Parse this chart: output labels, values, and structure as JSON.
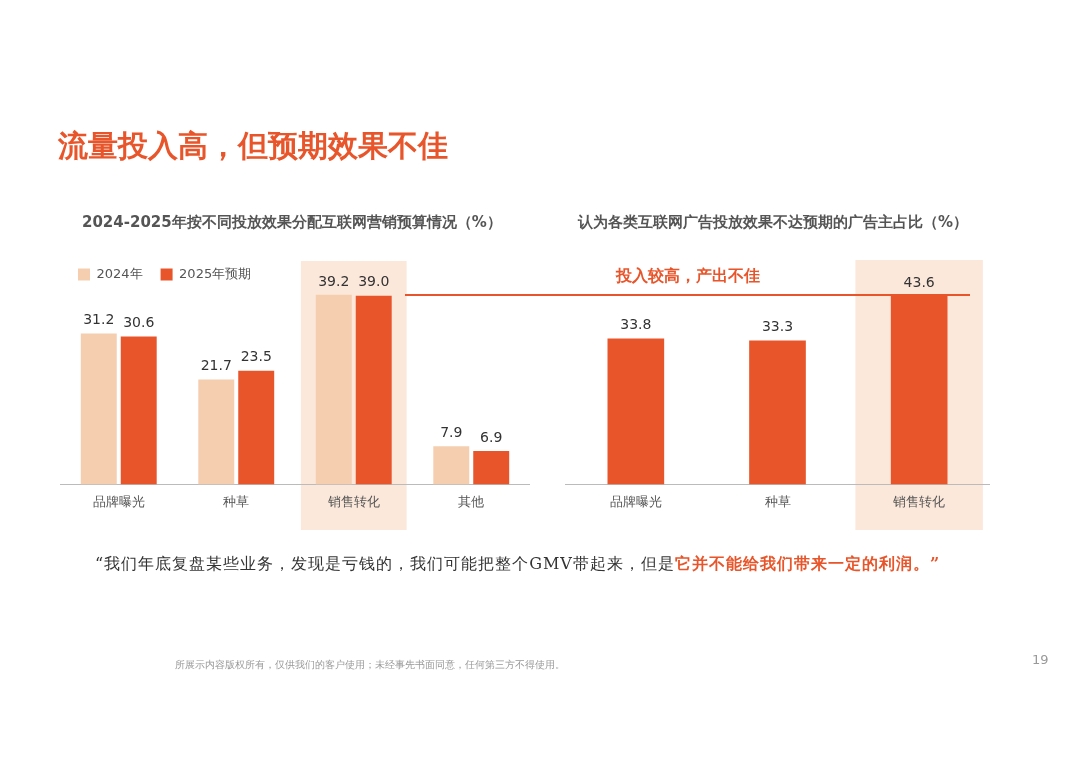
{
  "chart_data": [
    {
      "type": "bar",
      "title": "2024-2025年按不同投放效果分配互联网营销预算情况（%）",
      "categories": [
        "品牌曝光",
        "种草",
        "销售转化",
        "其他"
      ],
      "series": [
        {
          "name": "2024年",
          "color": "#f5ceb0",
          "values": [
            31.2,
            21.7,
            39.2,
            7.9
          ],
          "value_labels": [
            "31.2",
            "21.7",
            "39.2",
            "7.9"
          ]
        },
        {
          "name": "2025年预期",
          "color": "#e8552a",
          "values": [
            30.6,
            23.5,
            39.0,
            6.9
          ],
          "value_labels": [
            "30.6",
            "23.5",
            "39.0",
            "6.9"
          ]
        }
      ],
      "legend": "top left",
      "bands": [
        {
          "axis": "x",
          "from": "销售转化",
          "to": "销售转化",
          "color": "#fbe8da"
        }
      ],
      "annotations": [
        "流量投入高，但预期效果不佳",
        "“我们年底复盘某些业务，发现是亏钱的，我们可能把整个GMV带起来，但是",
        "它并不能给我们带来一定的利润。”",
        "所展示内容版权所有，仅供我们的客户使用；未经事先书面同意，任何第三方不得使用。",
        "19"
      ]
    },
    {
      "type": "bar",
      "title": "认为各类互联网广告投放效果不达预期的广告主占比（%）",
      "categories": [
        "品牌曝光",
        "种草",
        "销售转化"
      ],
      "series": [
        {
          "color": "#e8552a",
          "values": [
            33.8,
            33.3,
            43.6
          ]
        }
      ],
      "data_labels": true,
      "bands": [
        {
          "axis": "x",
          "from": "销售转化",
          "to": "销售转化",
          "color": "#fbe8da"
        }
      ],
      "annotations": [
        "投入较高，产出不佳"
      ]
    }
  ]
}
